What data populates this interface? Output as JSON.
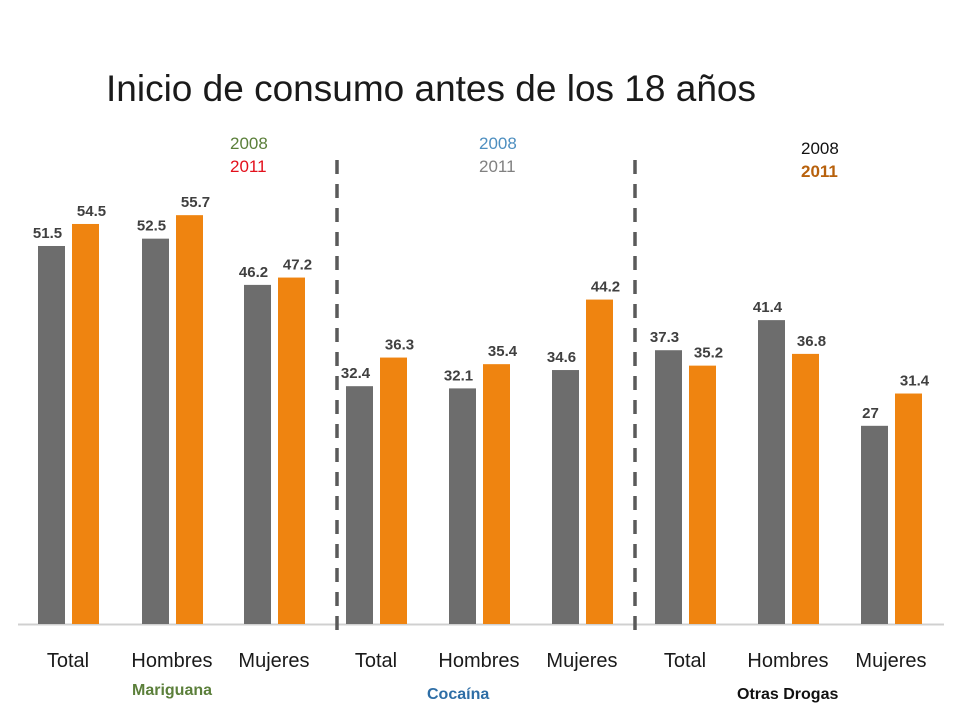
{
  "chart_data": {
    "type": "bar",
    "title": "Inicio de consumo antes de los 18 años",
    "categories": [
      "Total",
      "Hombres",
      "Mujeres",
      "Total",
      "Hombres",
      "Mujeres",
      "Total",
      "Hombres",
      "Mujeres"
    ],
    "groups": [
      {
        "name": "Mariguana",
        "color": "#5b7f3a",
        "legend": [
          "2008",
          "2011"
        ],
        "legend_colors": [
          "#5b7f3a",
          "#e3101c"
        ]
      },
      {
        "name": "Cocaína",
        "color": "#2e6ea6",
        "legend": [
          "2008",
          "2011"
        ],
        "legend_colors": [
          "#4e8fc0",
          "#808080"
        ]
      },
      {
        "name": "Otras Drogas",
        "color": "#111111",
        "legend": [
          "2008",
          "2011"
        ],
        "legend_colors": [
          "#111111",
          "#b8610c"
        ]
      }
    ],
    "series": [
      {
        "values": [
          51.5,
          52.5,
          46.2,
          32.4,
          32.1,
          34.6,
          37.3,
          41.4,
          27
        ],
        "color": "#6d6d6d"
      },
      {
        "values": [
          54.5,
          55.7,
          47.2,
          36.3,
          35.4,
          44.2,
          35.2,
          36.8,
          31.4
        ],
        "color": "#ef8410"
      }
    ],
    "data_labels": [
      [
        "51.5",
        "52.5",
        "46.2",
        "32.4",
        "32.1",
        "34.6",
        "37.3",
        "41.4",
        "27"
      ],
      [
        "54.5",
        "55.7",
        "47.2",
        "36.3",
        "35.4",
        "44.2",
        "35.2",
        "36.8",
        "31.4"
      ]
    ],
    "ylim": [
      0,
      60
    ],
    "grid": false,
    "separators": "dashed"
  }
}
